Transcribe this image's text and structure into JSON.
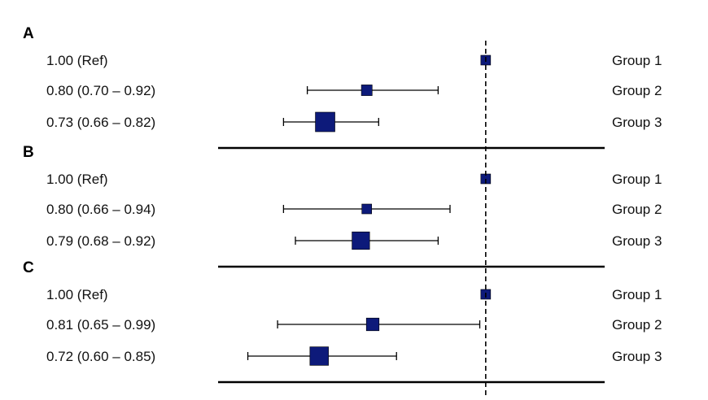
{
  "chart_data": {
    "type": "forest",
    "reference_value": 1.0,
    "xlim": [
      0.55,
      1.2
    ],
    "marker_color": "#0d1a7a",
    "panels": [
      {
        "label": "A",
        "rows": [
          {
            "group": "Group 1",
            "estimate": 1.0,
            "lower": null,
            "upper": null,
            "label": "1.00 (Ref)",
            "weight": 1
          },
          {
            "group": "Group 2",
            "estimate": 0.8,
            "lower": 0.7,
            "upper": 0.92,
            "label": "0.80 (0.70 – 0.92)",
            "weight": 1.1
          },
          {
            "group": "Group 3",
            "estimate": 0.73,
            "lower": 0.66,
            "upper": 0.82,
            "label": "0.73 (0.66 – 0.82)",
            "weight": 2
          }
        ]
      },
      {
        "label": "B",
        "rows": [
          {
            "group": "Group 1",
            "estimate": 1.0,
            "lower": null,
            "upper": null,
            "label": "1.00 (Ref)",
            "weight": 1
          },
          {
            "group": "Group 2",
            "estimate": 0.8,
            "lower": 0.66,
            "upper": 0.94,
            "label": "0.80 (0.66 – 0.94)",
            "weight": 1
          },
          {
            "group": "Group 3",
            "estimate": 0.79,
            "lower": 0.68,
            "upper": 0.92,
            "label": "0.79 (0.68 – 0.92)",
            "weight": 1.8
          }
        ]
      },
      {
        "label": "C",
        "rows": [
          {
            "group": "Group 1",
            "estimate": 1.0,
            "lower": null,
            "upper": null,
            "label": "1.00 (Ref)",
            "weight": 1
          },
          {
            "group": "Group 2",
            "estimate": 0.81,
            "lower": 0.65,
            "upper": 0.99,
            "label": "0.81 (0.65 – 0.99)",
            "weight": 1.3
          },
          {
            "group": "Group 3",
            "estimate": 0.72,
            "lower": 0.6,
            "upper": 0.85,
            "label": "0.72 (0.60 – 0.85)",
            "weight": 1.9
          }
        ]
      }
    ]
  }
}
